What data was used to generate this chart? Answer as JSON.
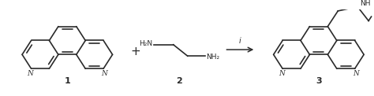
{
  "bg_color": "#ffffff",
  "line_color": "#2a2a2a",
  "line_width": 1.2,
  "figsize": [
    4.74,
    1.22
  ],
  "dpi": 100,
  "compound1_label": "1",
  "compound2_label": "2",
  "compound3_label": "3",
  "reagent_label": "i"
}
